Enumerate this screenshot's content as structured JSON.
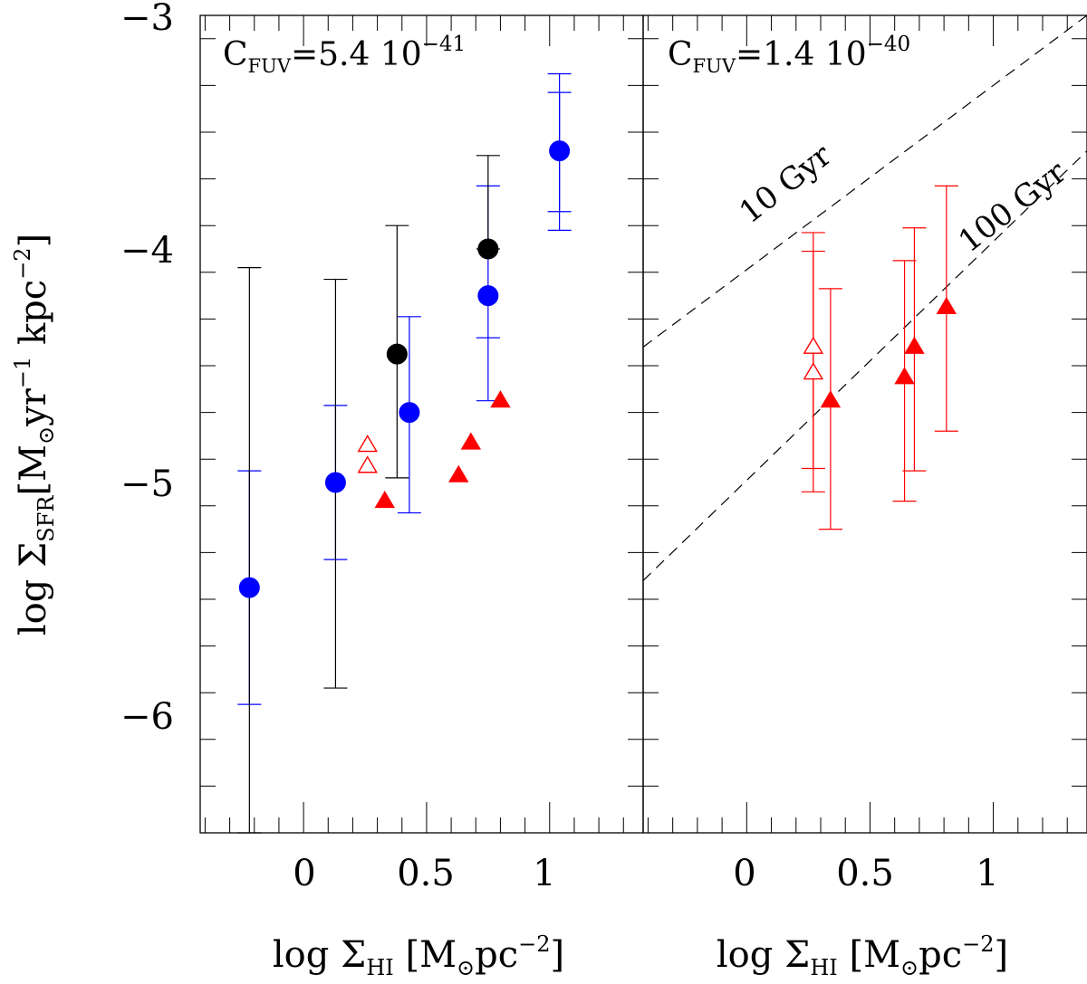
{
  "chart_data": [
    {
      "type": "scatter",
      "panel": "left",
      "annotation": {
        "prefix": "C",
        "sub": "FUV",
        "value": "=5.4  10",
        "exp": "−41"
      },
      "ylabel": {
        "pre": "log  Σ",
        "sub": "SFR",
        "post": "[M",
        "sun": "⊙",
        "mid": "yr",
        "exp1": "−1",
        "tail": " kpc",
        "exp2": "−2",
        "close": "]"
      },
      "xlabel": {
        "pre": "log  Σ",
        "sub": "HI",
        "post": "  [M",
        "sun": "⊙",
        "mid": "pc",
        "exp": "−2",
        "close": "]"
      },
      "xlim": [
        -0.42,
        1.38
      ],
      "ylim": [
        -6.5,
        -3.0
      ],
      "xticks": [
        0,
        0.5,
        1
      ],
      "xtick_labels": [
        "0",
        "0.5",
        "1"
      ],
      "yticks": [
        -6,
        -5,
        -4,
        -3
      ],
      "ytick_labels": [
        "−6",
        "−5",
        "−4",
        "−3"
      ],
      "series": [
        {
          "name": "blue-filled-circles",
          "color": "#0000ff",
          "marker": "circle",
          "filled": true,
          "points": [
            {
              "x": -0.22,
              "y": -5.45,
              "ylo": -5.95,
              "yhi": -4.95
            },
            {
              "x": 0.13,
              "y": -5.0,
              "ylo": -5.33,
              "yhi": -4.67
            },
            {
              "x": 0.43,
              "y": -4.7,
              "ylo": -5.13,
              "yhi": -4.29
            },
            {
              "x": 0.75,
              "y": -4.2,
              "ylo": -4.65,
              "yhi": -3.73
            },
            {
              "x": 1.04,
              "y": -3.58,
              "ylo": -3.92,
              "yhi": -3.25
            }
          ]
        },
        {
          "name": "blue-inner-errorbars",
          "color": "#0000ff",
          "marker": "none",
          "points": [
            {
              "x": 0.75,
              "y": -4.2,
              "ylo": -4.38,
              "yhi": -4.38
            },
            {
              "x": 1.04,
              "y": -3.58,
              "ylo": -3.84,
              "yhi": -3.33
            }
          ]
        },
        {
          "name": "black-filled-circles",
          "color": "#000000",
          "marker": "circle",
          "filled": true,
          "points": [
            {
              "x": -0.22,
              "y": null,
              "ylo": -6.5,
              "yhi": -4.08
            },
            {
              "x": 0.13,
              "y": null,
              "ylo": -5.88,
              "yhi": -4.13
            },
            {
              "x": 0.38,
              "y": -4.45,
              "ylo": -4.98,
              "yhi": -3.9
            },
            {
              "x": 0.75,
              "y": -4.0,
              "ylo": -4.0,
              "yhi": -3.6
            }
          ]
        },
        {
          "name": "red-filled-triangles",
          "color": "#ff0000",
          "marker": "triangle",
          "filled": true,
          "points": [
            {
              "x": 0.33,
              "y": -5.08
            },
            {
              "x": 0.63,
              "y": -4.97
            },
            {
              "x": 0.68,
              "y": -4.83
            },
            {
              "x": 0.8,
              "y": -4.65
            }
          ]
        },
        {
          "name": "red-open-triangles",
          "color": "#ff0000",
          "marker": "triangle",
          "filled": false,
          "points": [
            {
              "x": 0.26,
              "y": -4.84
            },
            {
              "x": 0.26,
              "y": -4.93
            }
          ]
        }
      ]
    },
    {
      "type": "scatter",
      "panel": "right",
      "annotation": {
        "prefix": "C",
        "sub": "FUV",
        "value": "=1.4  10",
        "exp": "−40"
      },
      "xlabel": {
        "pre": "log  Σ",
        "sub": "HI",
        "post": "  [M",
        "sun": "⊙",
        "mid": "pc",
        "exp": "−2",
        "close": "]"
      },
      "xlim": [
        -0.42,
        1.38
      ],
      "ylim": [
        -6.5,
        -3.0
      ],
      "xticks": [
        0,
        0.5,
        1
      ],
      "xtick_labels": [
        "0",
        "0.5",
        "1"
      ],
      "lines": [
        {
          "label": "10 Gyr",
          "style": "dashed",
          "x": [
            -0.42,
            1.38
          ],
          "y": [
            -4.42,
            -3.0
          ]
        },
        {
          "label": "100 Gyr",
          "style": "dashed",
          "x": [
            -0.42,
            1.38
          ],
          "y": [
            -5.42,
            -3.58
          ]
        }
      ],
      "series": [
        {
          "name": "red-filled-triangles",
          "color": "#ff0000",
          "marker": "triangle",
          "filled": true,
          "points": [
            {
              "x": 0.34,
              "y": -4.65,
              "ylo": -5.2,
              "yhi": -4.17
            },
            {
              "x": 0.64,
              "y": -4.55,
              "ylo": -5.08,
              "yhi": -4.05
            },
            {
              "x": 0.68,
              "y": -4.42,
              "ylo": -4.95,
              "yhi": -3.91
            },
            {
              "x": 0.81,
              "y": -4.25,
              "ylo": -4.78,
              "yhi": -3.73
            }
          ]
        },
        {
          "name": "red-open-triangles",
          "color": "#ff0000",
          "marker": "triangle",
          "filled": false,
          "points": [
            {
              "x": 0.27,
              "y": -4.42,
              "ylo": -5.04,
              "yhi": -3.93
            },
            {
              "x": 0.27,
              "y": -4.53,
              "ylo": -4.94,
              "yhi": -4.01
            }
          ]
        }
      ]
    }
  ]
}
